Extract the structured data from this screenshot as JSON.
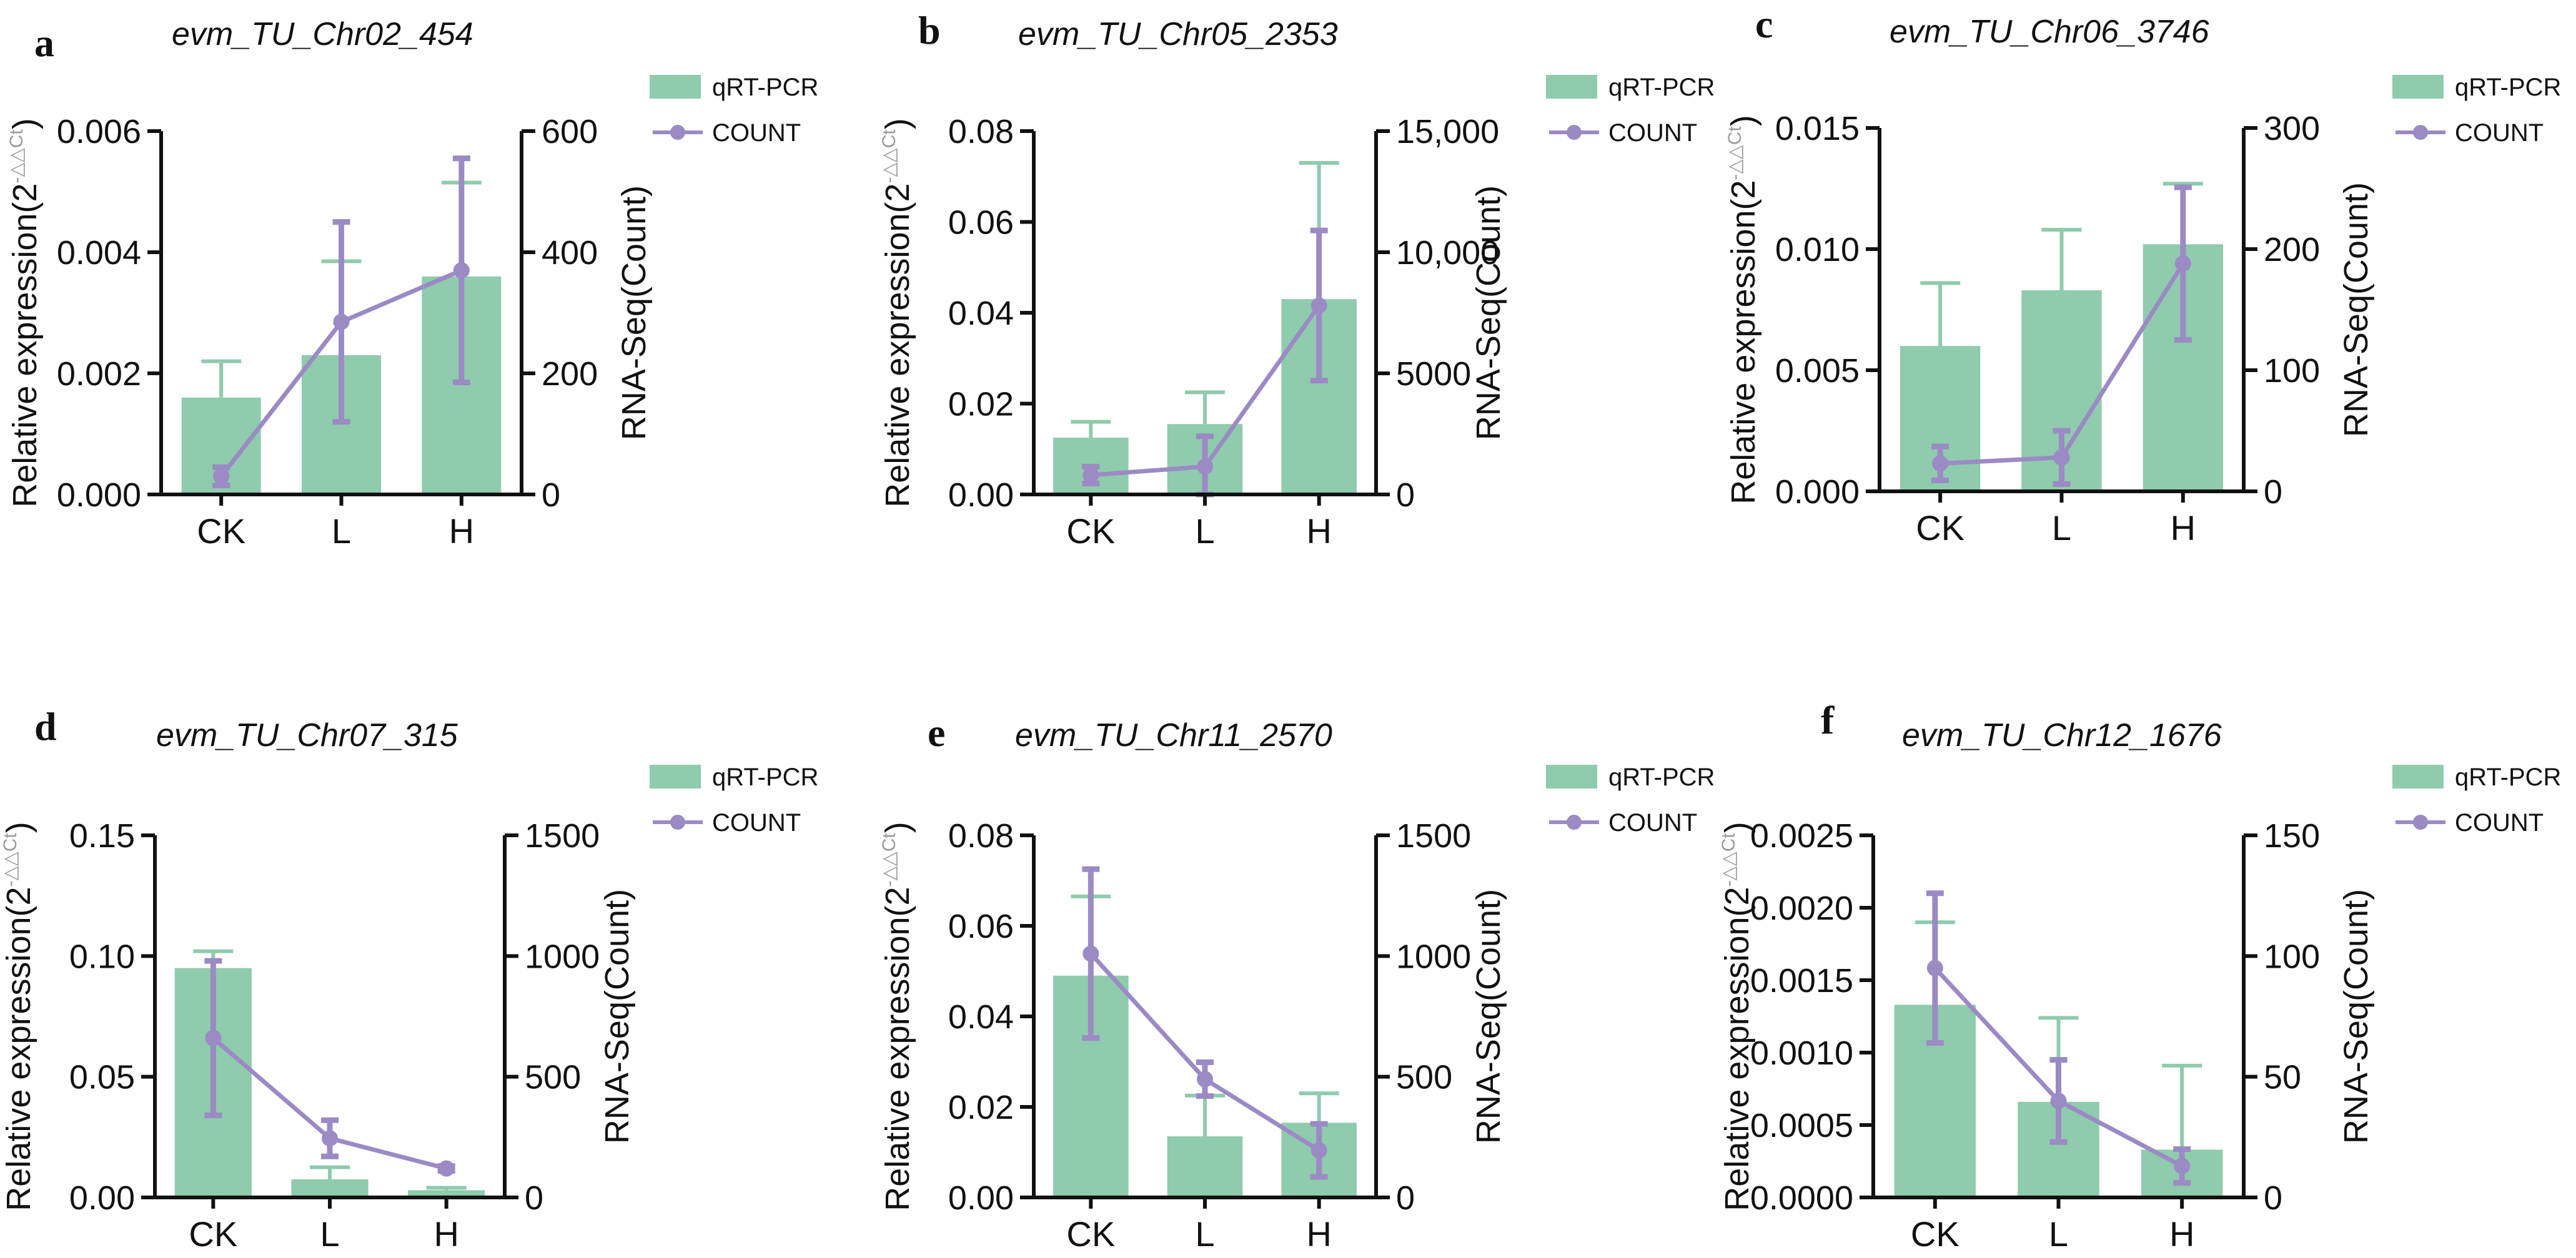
{
  "figure": {
    "bar_color": "#8fcbad",
    "line_color": "#9b8ac4",
    "axis_color": "#111111"
  },
  "legend": {
    "bar_label": "qRT-PCR",
    "line_label": "COUNT"
  },
  "axes_text": {
    "y_left_prefix": "Relative expression(2",
    "y_left_superscript": "-△△Ct",
    "y_left_suffix": ")",
    "y_right": "RNA-Seq(Count)"
  },
  "chart_data": [
    {
      "panel": "a",
      "title": "evm_TU_Chr02_454",
      "type": "bar+line",
      "categories": [
        "CK",
        "L",
        "H"
      ],
      "series": [
        {
          "name": "qRT-PCR",
          "axis": "left",
          "values": [
            0.0016,
            0.0023,
            0.0036
          ],
          "errors": [
            0.0006,
            0.00155,
            0.00155
          ]
        },
        {
          "name": "COUNT",
          "axis": "right",
          "values": [
            30,
            285,
            370
          ],
          "errors": [
            15,
            165,
            185
          ]
        }
      ],
      "ylim_left": [
        0,
        0.006
      ],
      "yticks_left": [
        0,
        0.002,
        0.004,
        0.006
      ],
      "yticklabels_left": [
        "0.000",
        "0.002",
        "0.004",
        "0.006"
      ],
      "ylim_right": [
        0,
        600
      ],
      "yticks_right": [
        0,
        200,
        400,
        600
      ],
      "yticklabels_right": [
        "0",
        "200",
        "400",
        "600"
      ]
    },
    {
      "panel": "b",
      "title": "evm_TU_Chr05_2353",
      "type": "bar+line",
      "categories": [
        "CK",
        "L",
        "H"
      ],
      "series": [
        {
          "name": "qRT-PCR",
          "axis": "left",
          "values": [
            0.0125,
            0.0155,
            0.043
          ],
          "errors": [
            0.0035,
            0.007,
            0.03
          ]
        },
        {
          "name": "COUNT",
          "axis": "right",
          "values": [
            800,
            1150,
            7800
          ],
          "errors": [
            350,
            1250,
            3100
          ]
        }
      ],
      "ylim_left": [
        0,
        0.08
      ],
      "yticks_left": [
        0,
        0.02,
        0.04,
        0.06,
        0.08
      ],
      "yticklabels_left": [
        "0.00",
        "0.02",
        "0.04",
        "0.06",
        "0.08"
      ],
      "ylim_right": [
        0,
        15000
      ],
      "yticks_right": [
        0,
        5000,
        10000,
        15000
      ],
      "yticklabels_right": [
        "0",
        "5000",
        "10,000",
        "15,000"
      ]
    },
    {
      "panel": "c",
      "title": "evm_TU_Chr06_3746",
      "type": "bar+line",
      "categories": [
        "CK",
        "L",
        "H"
      ],
      "series": [
        {
          "name": "qRT-PCR",
          "axis": "left",
          "values": [
            0.006,
            0.0083,
            0.0102
          ],
          "errors": [
            0.0026,
            0.0025,
            0.0025
          ]
        },
        {
          "name": "COUNT",
          "axis": "right",
          "values": [
            23,
            28,
            188
          ],
          "errors": [
            14,
            22,
            63
          ]
        }
      ],
      "ylim_left": [
        0,
        0.015
      ],
      "yticks_left": [
        0,
        0.005,
        0.01,
        0.015
      ],
      "yticklabels_left": [
        "0.000",
        "0.005",
        "0.010",
        "0.015"
      ],
      "ylim_right": [
        0,
        300
      ],
      "yticks_right": [
        0,
        100,
        200,
        300
      ],
      "yticklabels_right": [
        "0",
        "100",
        "200",
        "300"
      ]
    },
    {
      "panel": "d",
      "title": "evm_TU_Chr07_315",
      "type": "bar+line",
      "categories": [
        "CK",
        "L",
        "H"
      ],
      "series": [
        {
          "name": "qRT-PCR",
          "axis": "left",
          "values": [
            0.095,
            0.0075,
            0.003
          ],
          "errors": [
            0.007,
            0.005,
            0.001
          ]
        },
        {
          "name": "COUNT",
          "axis": "right",
          "values": [
            660,
            245,
            120
          ],
          "errors": [
            320,
            75,
            10
          ]
        }
      ],
      "ylim_left": [
        0,
        0.15
      ],
      "yticks_left": [
        0,
        0.05,
        0.1,
        0.15
      ],
      "yticklabels_left": [
        "0.00",
        "0.05",
        "0.10",
        "0.15"
      ],
      "ylim_right": [
        0,
        1500
      ],
      "yticks_right": [
        0,
        500,
        1000,
        1500
      ],
      "yticklabels_right": [
        "0",
        "500",
        "1000",
        "1500"
      ]
    },
    {
      "panel": "e",
      "title": "evm_TU_Chr11_2570",
      "type": "bar+line",
      "categories": [
        "CK",
        "L",
        "H"
      ],
      "series": [
        {
          "name": "qRT-PCR",
          "axis": "left",
          "values": [
            0.049,
            0.0135,
            0.0165
          ],
          "errors": [
            0.0175,
            0.009,
            0.0065
          ]
        },
        {
          "name": "COUNT",
          "axis": "right",
          "values": [
            1010,
            490,
            195
          ],
          "errors": [
            350,
            70,
            110
          ]
        }
      ],
      "ylim_left": [
        0,
        0.08
      ],
      "yticks_left": [
        0,
        0.02,
        0.04,
        0.06,
        0.08
      ],
      "yticklabels_left": [
        "0.00",
        "0.02",
        "0.04",
        "0.06",
        "0.08"
      ],
      "ylim_right": [
        0,
        1500
      ],
      "yticks_right": [
        0,
        500,
        1000,
        1500
      ],
      "yticklabels_right": [
        "0",
        "500",
        "1000",
        "1500"
      ]
    },
    {
      "panel": "f",
      "title": "evm_TU_Chr12_1676",
      "type": "bar+line",
      "categories": [
        "CK",
        "L",
        "H"
      ],
      "series": [
        {
          "name": "qRT-PCR",
          "axis": "left",
          "values": [
            0.00133,
            0.00066,
            0.00033
          ],
          "errors": [
            0.00057,
            0.00058,
            0.00058
          ]
        },
        {
          "name": "COUNT",
          "axis": "right",
          "values": [
            95,
            40,
            13
          ],
          "errors": [
            31,
            17,
            7
          ]
        }
      ],
      "ylim_left": [
        0,
        0.0025
      ],
      "yticks_left": [
        0,
        0.0005,
        0.001,
        0.0015,
        0.002,
        0.0025
      ],
      "yticklabels_left": [
        "0.0000",
        "0.0005",
        "0.0010",
        "0.0015",
        "0.0020",
        "0.0025"
      ],
      "ylim_right": [
        0,
        150
      ],
      "yticks_right": [
        0,
        50,
        100,
        150
      ],
      "yticklabels_right": [
        "0",
        "50",
        "100",
        "150"
      ]
    }
  ]
}
